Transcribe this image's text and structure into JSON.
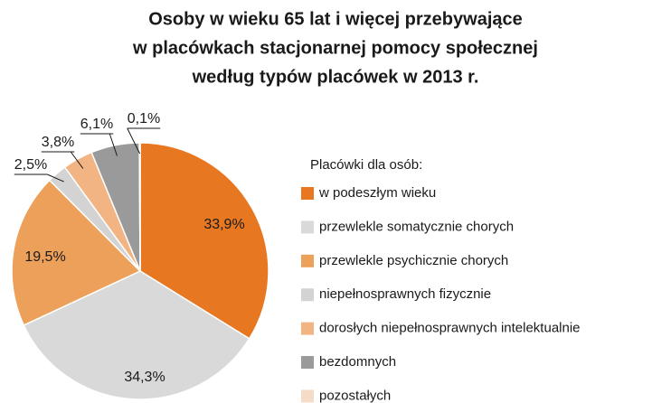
{
  "chart_data": {
    "type": "pie",
    "title": [
      "Osoby w wieku 65 lat i więcej przebywające",
      "w placówkach stacjonarnej pomocy społecznej",
      "według typów placówek w 2013 r."
    ],
    "legend_title": "Placówki dla osób:",
    "categories": [
      "w podeszłym wieku",
      "przewlekle somatycznie chorych",
      "przewlekle psychicznie chorych",
      "niepełnosprawnych fizycznie",
      "dorosłych niepełnosprawnych intelektualnie",
      "bezdomnych",
      "pozostałych"
    ],
    "values": [
      33.9,
      34.3,
      19.5,
      2.5,
      3.8,
      6.1,
      0.1
    ],
    "value_labels": [
      "33,9%",
      "34,3%",
      "19,5%",
      "2,5%",
      "3,8%",
      "6,1%",
      "0,1%"
    ],
    "colors": [
      "#e87722",
      "#d9d9d9",
      "#eda05a",
      "#d3d3d3",
      "#f2b482",
      "#9a9a9a",
      "#f5dcc8"
    ]
  }
}
